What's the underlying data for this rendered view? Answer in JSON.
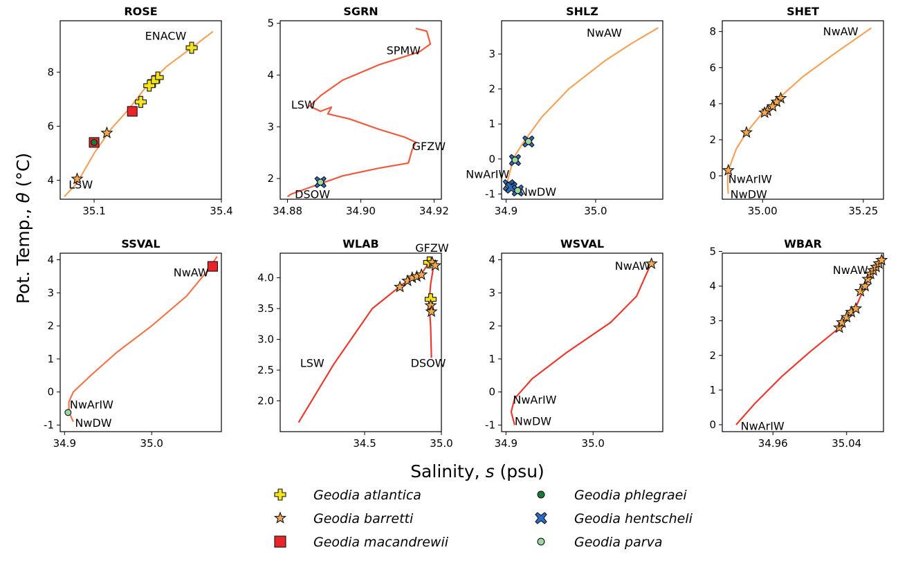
{
  "figure": {
    "ylabel_prefix": "Pot. Temp., ",
    "ylabel_symbol": "θ",
    "ylabel_suffix": " (°C)",
    "xlabel_prefix": "Salinity, ",
    "xlabel_symbol": "s",
    "xlabel_suffix": " (psu)"
  },
  "legend": [
    {
      "label": "Geodia atlantica",
      "marker": "plus",
      "color": "#f5e31a"
    },
    {
      "label": "Geodia barretti",
      "marker": "star",
      "color": "#f7a84a"
    },
    {
      "label": "Geodia macandrewii",
      "marker": "square",
      "color": "#e8262a"
    },
    {
      "label": "Geodia phlegraei",
      "marker": "circle",
      "color": "#1b7a38"
    },
    {
      "label": "Geodia hentscheli",
      "marker": "x",
      "color": "#2b6cc4"
    },
    {
      "label": "Geodia parva",
      "marker": "circle",
      "color": "#9ad8a0"
    }
  ],
  "chart_data": [
    {
      "type": "scatter",
      "title": "ROSE",
      "xlim": [
        35.02,
        35.4
      ],
      "ylim": [
        3.3,
        9.9
      ],
      "xticks": [
        35.1,
        35.4
      ],
      "xtick_labels": [
        "35.1",
        "35.4"
      ],
      "yticks": [
        4,
        6,
        8
      ],
      "ytick_labels": [
        "4",
        "6",
        "8"
      ],
      "profile_color": "#f5a35a",
      "profile": [
        [
          35.03,
          3.4
        ],
        [
          35.06,
          3.9
        ],
        [
          35.1,
          5.0
        ],
        [
          35.14,
          5.9
        ],
        [
          35.18,
          6.6
        ],
        [
          35.22,
          7.4
        ],
        [
          35.27,
          8.2
        ],
        [
          35.33,
          8.9
        ],
        [
          35.38,
          9.5
        ]
      ],
      "annotations": [
        {
          "text": "ENACW",
          "x": 35.22,
          "y": 9.2
        },
        {
          "text": "LSW",
          "x": 35.04,
          "y": 3.7
        }
      ],
      "points": [
        {
          "species": "Geodia atlantica",
          "x": 35.33,
          "y": 8.9
        },
        {
          "species": "Geodia atlantica",
          "x": 35.25,
          "y": 7.8
        },
        {
          "species": "Geodia atlantica",
          "x": 35.24,
          "y": 7.65
        },
        {
          "species": "Geodia atlantica",
          "x": 35.23,
          "y": 7.5
        },
        {
          "species": "Geodia atlantica",
          "x": 35.21,
          "y": 6.9
        },
        {
          "species": "Geodia macandrewii",
          "x": 35.19,
          "y": 6.55
        },
        {
          "species": "Geodia barretti",
          "x": 35.13,
          "y": 5.75
        },
        {
          "species": "Geodia macandrewii",
          "x": 35.1,
          "y": 5.4
        },
        {
          "species": "Geodia phlegraei",
          "x": 35.1,
          "y": 5.4
        },
        {
          "species": "Geodia barretti",
          "x": 35.06,
          "y": 4.05
        }
      ]
    },
    {
      "type": "scatter",
      "title": "SGRN",
      "xlim": [
        34.878,
        34.922
      ],
      "ylim": [
        1.6,
        5.05
      ],
      "xticks": [
        34.88,
        34.9,
        34.92
      ],
      "xtick_labels": [
        "34.88",
        "34.90",
        "34.92"
      ],
      "yticks": [
        2,
        3,
        4,
        5
      ],
      "ytick_labels": [
        "2",
        "3",
        "4",
        "5"
      ],
      "profile_color": "#ef5a3c",
      "profile": [
        [
          34.915,
          4.9
        ],
        [
          34.918,
          4.85
        ],
        [
          34.919,
          4.6
        ],
        [
          34.916,
          4.45
        ],
        [
          34.905,
          4.2
        ],
        [
          34.895,
          3.9
        ],
        [
          34.889,
          3.6
        ],
        [
          34.886,
          3.4
        ],
        [
          34.889,
          3.3
        ],
        [
          34.892,
          3.38
        ],
        [
          34.891,
          3.25
        ],
        [
          34.897,
          3.15
        ],
        [
          34.905,
          2.95
        ],
        [
          34.912,
          2.8
        ],
        [
          34.915,
          2.7
        ],
        [
          34.914,
          2.55
        ],
        [
          34.913,
          2.3
        ],
        [
          34.905,
          2.2
        ],
        [
          34.895,
          2.05
        ],
        [
          34.885,
          1.8
        ],
        [
          34.881,
          1.7
        ],
        [
          34.88,
          1.65
        ]
      ],
      "annotations": [
        {
          "text": "SPMW",
          "x": 34.907,
          "y": 4.4
        },
        {
          "text": "LSW",
          "x": 34.881,
          "y": 3.35
        },
        {
          "text": "GFZW",
          "x": 34.914,
          "y": 2.55
        },
        {
          "text": "DSOW",
          "x": 34.882,
          "y": 1.62
        }
      ],
      "points": [
        {
          "species": "Geodia hentscheli",
          "x": 34.889,
          "y": 1.93
        },
        {
          "species": "Geodia parva",
          "x": 34.889,
          "y": 1.93
        }
      ]
    },
    {
      "type": "scatter",
      "title": "SHLZ",
      "xlim": [
        34.895,
        35.075
      ],
      "ylim": [
        -1.15,
        3.95
      ],
      "xticks": [
        34.9,
        35.0
      ],
      "xtick_labels": [
        "34.9",
        "35.0"
      ],
      "yticks": [
        -1,
        0,
        1,
        2,
        3
      ],
      "ytick_labels": [
        "-1",
        "0",
        "1",
        "2",
        "3"
      ],
      "profile_color": "#f5a35a",
      "profile": [
        [
          34.9,
          -0.95
        ],
        [
          34.901,
          -0.7
        ],
        [
          34.905,
          -0.3
        ],
        [
          34.91,
          0.1
        ],
        [
          34.92,
          0.5
        ],
        [
          34.94,
          1.2
        ],
        [
          34.97,
          2.0
        ],
        [
          35.01,
          2.8
        ],
        [
          35.04,
          3.3
        ],
        [
          35.07,
          3.75
        ]
      ],
      "annotations": [
        {
          "text": "NwAW",
          "x": 34.99,
          "y": 3.5
        },
        {
          "text": "NwArIW",
          "x": 34.855,
          "y": -0.55
        },
        {
          "text": "NwDW",
          "x": 34.915,
          "y": -1.05
        }
      ],
      "points": [
        {
          "species": "Geodia hentscheli",
          "x": 34.925,
          "y": 0.5
        },
        {
          "species": "Geodia parva",
          "x": 34.925,
          "y": 0.5
        },
        {
          "species": "Geodia hentscheli",
          "x": 34.91,
          "y": -0.03
        },
        {
          "species": "Geodia parva",
          "x": 34.91,
          "y": -0.03
        },
        {
          "species": "Geodia hentscheli",
          "x": 34.903,
          "y": -0.75
        },
        {
          "species": "Geodia parva",
          "x": 34.903,
          "y": -0.75
        },
        {
          "species": "Geodia hentscheli",
          "x": 34.906,
          "y": -0.82
        },
        {
          "species": "Geodia hentscheli",
          "x": 34.913,
          "y": -0.9
        },
        {
          "species": "Geodia parva",
          "x": 34.913,
          "y": -0.9
        }
      ]
    },
    {
      "type": "scatter",
      "title": "SHET",
      "xlim": [
        34.9,
        35.3
      ],
      "ylim": [
        -1.3,
        8.6
      ],
      "xticks": [
        35.0,
        35.25
      ],
      "xtick_labels": [
        "35.00",
        "35.25"
      ],
      "yticks": [
        0,
        2,
        4,
        6,
        8
      ],
      "ytick_labels": [
        "0",
        "2",
        "4",
        "6",
        "8"
      ],
      "profile_color": "#f5a35a",
      "profile": [
        [
          34.915,
          -1.0
        ],
        [
          34.913,
          -0.3
        ],
        [
          34.915,
          0.3
        ],
        [
          34.935,
          1.5
        ],
        [
          34.96,
          2.4
        ],
        [
          35.0,
          3.5
        ],
        [
          35.04,
          4.3
        ],
        [
          35.1,
          5.5
        ],
        [
          35.18,
          6.8
        ],
        [
          35.27,
          8.2
        ]
      ],
      "annotations": [
        {
          "text": "NwAW",
          "x": 35.15,
          "y": 7.8
        },
        {
          "text": "NwArIW",
          "x": 34.915,
          "y": -0.4
        },
        {
          "text": "NwDW",
          "x": 34.92,
          "y": -1.25
        }
      ],
      "points": [
        {
          "species": "Geodia barretti",
          "x": 35.045,
          "y": 4.3
        },
        {
          "species": "Geodia barretti",
          "x": 35.035,
          "y": 4.1
        },
        {
          "species": "Geodia barretti",
          "x": 35.025,
          "y": 3.85
        },
        {
          "species": "Geodia barretti",
          "x": 35.012,
          "y": 3.6
        },
        {
          "species": "Geodia barretti",
          "x": 35.005,
          "y": 3.5
        },
        {
          "species": "Geodia barretti",
          "x": 34.96,
          "y": 2.4
        },
        {
          "species": "Geodia barretti",
          "x": 34.915,
          "y": 0.3
        }
      ]
    },
    {
      "type": "scatter",
      "title": "SSVAL",
      "xlim": [
        34.895,
        35.08
      ],
      "ylim": [
        -1.2,
        4.2
      ],
      "xticks": [
        34.9,
        35.0
      ],
      "xtick_labels": [
        "34.9",
        "35.0"
      ],
      "yticks": [
        -1,
        0,
        1,
        2,
        3,
        4
      ],
      "ytick_labels": [
        "-1",
        "0",
        "1",
        "2",
        "3",
        "4"
      ],
      "profile_color": "#f1764a",
      "profile": [
        [
          34.91,
          -0.9
        ],
        [
          34.905,
          -0.6
        ],
        [
          34.905,
          -0.3
        ],
        [
          34.91,
          0.0
        ],
        [
          34.93,
          0.5
        ],
        [
          34.96,
          1.2
        ],
        [
          35.0,
          2.0
        ],
        [
          35.04,
          2.9
        ],
        [
          35.065,
          3.7
        ],
        [
          35.075,
          4.1
        ]
      ],
      "annotations": [
        {
          "text": "NwAW",
          "x": 35.025,
          "y": 3.5
        },
        {
          "text": "NwArIW",
          "x": 34.906,
          "y": -0.5
        },
        {
          "text": "NwDW",
          "x": 34.912,
          "y": -1.05
        }
      ],
      "points": [
        {
          "species": "Geodia macandrewii",
          "x": 35.07,
          "y": 3.8
        },
        {
          "species": "Geodia parva",
          "x": 34.904,
          "y": -0.62
        }
      ]
    },
    {
      "type": "scatter",
      "title": "WLAB",
      "xlim": [
        33.95,
        35.0
      ],
      "ylim": [
        1.5,
        4.4
      ],
      "xticks": [
        34.5,
        35.0
      ],
      "xtick_labels": [
        "34.5",
        "35.0"
      ],
      "yticks": [
        2.0,
        2.5,
        3.0,
        3.5,
        4.0
      ],
      "ytick_labels": [
        "2.0",
        "2.5",
        "3.0",
        "3.5",
        "4.0"
      ],
      "profile_color": "#e83a2e",
      "profile": [
        [
          34.07,
          1.65
        ],
        [
          34.3,
          2.6
        ],
        [
          34.55,
          3.5
        ],
        [
          34.75,
          3.9
        ],
        [
          34.88,
          4.1
        ],
        [
          34.92,
          4.25
        ],
        [
          34.95,
          4.2
        ],
        [
          34.93,
          3.9
        ],
        [
          34.92,
          3.6
        ],
        [
          34.93,
          3.2
        ],
        [
          34.935,
          2.7
        ]
      ],
      "annotations": [
        {
          "text": "GFZW",
          "x": 34.83,
          "y": 4.42
        },
        {
          "text": "LSW",
          "x": 34.08,
          "y": 2.55
        },
        {
          "text": "DSOW",
          "x": 34.8,
          "y": 2.55
        }
      ],
      "points": [
        {
          "species": "Geodia barretti",
          "x": 34.73,
          "y": 3.85
        },
        {
          "species": "Geodia barretti",
          "x": 34.78,
          "y": 3.95
        },
        {
          "species": "Geodia barretti",
          "x": 34.81,
          "y": 4.0
        },
        {
          "species": "Geodia barretti",
          "x": 34.84,
          "y": 4.02
        },
        {
          "species": "Geodia barretti",
          "x": 34.87,
          "y": 4.05
        },
        {
          "species": "Geodia atlantica",
          "x": 34.92,
          "y": 4.25
        },
        {
          "species": "Geodia barretti",
          "x": 34.94,
          "y": 4.25
        },
        {
          "species": "Geodia barretti",
          "x": 34.96,
          "y": 4.2
        },
        {
          "species": "Geodia atlantica",
          "x": 34.93,
          "y": 3.65
        },
        {
          "species": "Geodia barretti",
          "x": 34.93,
          "y": 3.55
        },
        {
          "species": "Geodia barretti",
          "x": 34.935,
          "y": 3.45
        }
      ]
    },
    {
      "type": "scatter",
      "title": "WSVAL",
      "xlim": [
        34.895,
        35.08
      ],
      "ylim": [
        -1.2,
        4.2
      ],
      "xticks": [
        34.9,
        35.0
      ],
      "xtick_labels": [
        "34.9",
        "35.0"
      ],
      "yticks": [
        -1,
        0,
        1,
        2,
        3,
        4
      ],
      "ytick_labels": [
        "-1",
        "0",
        "1",
        "2",
        "3",
        "4"
      ],
      "profile_color": "#e83a2e",
      "profile": [
        [
          34.91,
          -1.0
        ],
        [
          34.906,
          -0.6
        ],
        [
          34.91,
          -0.2
        ],
        [
          34.93,
          0.4
        ],
        [
          34.97,
          1.2
        ],
        [
          35.02,
          2.1
        ],
        [
          35.05,
          2.9
        ],
        [
          35.06,
          3.5
        ],
        [
          35.067,
          3.9
        ]
      ],
      "annotations": [
        {
          "text": "NwAW",
          "x": 35.025,
          "y": 3.7
        },
        {
          "text": "NwArIW",
          "x": 34.908,
          "y": -0.35
        },
        {
          "text": "NwDW",
          "x": 34.91,
          "y": -1.0
        }
      ],
      "points": [
        {
          "species": "Geodia barretti",
          "x": 35.067,
          "y": 3.88
        }
      ]
    },
    {
      "type": "scatter",
      "title": "WBAR",
      "xlim": [
        34.905,
        35.08
      ],
      "ylim": [
        -0.2,
        4.95
      ],
      "xticks": [
        34.96,
        35.04
      ],
      "xtick_labels": [
        "34.96",
        "35.04"
      ],
      "yticks": [
        0,
        1,
        2,
        3,
        4,
        5
      ],
      "ytick_labels": [
        "0",
        "1",
        "2",
        "3",
        "4",
        "5"
      ],
      "profile_color": "#e83a2e",
      "profile": [
        [
          34.92,
          0.0
        ],
        [
          34.94,
          0.6
        ],
        [
          34.97,
          1.4
        ],
        [
          35.0,
          2.1
        ],
        [
          35.03,
          2.75
        ],
        [
          35.05,
          3.4
        ],
        [
          35.06,
          4.0
        ],
        [
          35.07,
          4.5
        ],
        [
          35.075,
          4.75
        ]
      ],
      "annotations": [
        {
          "text": "NwAW",
          "x": 35.025,
          "y": 4.35
        },
        {
          "text": "NwArIW",
          "x": 34.925,
          "y": -0.15
        }
      ],
      "points": [
        {
          "species": "Geodia barretti",
          "x": 35.032,
          "y": 2.8
        },
        {
          "species": "Geodia barretti",
          "x": 35.035,
          "y": 2.95
        },
        {
          "species": "Geodia barretti",
          "x": 35.04,
          "y": 3.1
        },
        {
          "species": "Geodia barretti",
          "x": 35.045,
          "y": 3.25
        },
        {
          "species": "Geodia barretti",
          "x": 35.05,
          "y": 3.35
        },
        {
          "species": "Geodia barretti",
          "x": 35.055,
          "y": 3.85
        },
        {
          "species": "Geodia barretti",
          "x": 35.06,
          "y": 4.0
        },
        {
          "species": "Geodia barretti",
          "x": 35.063,
          "y": 4.2
        },
        {
          "species": "Geodia barretti",
          "x": 35.066,
          "y": 4.35
        },
        {
          "species": "Geodia barretti",
          "x": 35.069,
          "y": 4.45
        },
        {
          "species": "Geodia barretti",
          "x": 35.072,
          "y": 4.55
        },
        {
          "species": "Geodia barretti",
          "x": 35.075,
          "y": 4.65
        },
        {
          "species": "Geodia barretti",
          "x": 35.078,
          "y": 4.75
        }
      ]
    }
  ]
}
